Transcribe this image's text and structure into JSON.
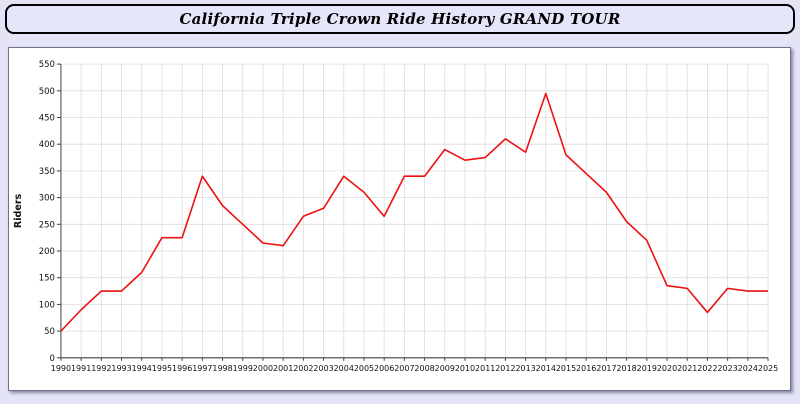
{
  "header": {
    "title": "California Triple Crown Ride History GRAND TOUR"
  },
  "chart_data": {
    "type": "line",
    "title": "California Triple Crown Ride History GRAND TOUR",
    "xlabel": "",
    "ylabel": "Riders",
    "ylim": [
      0,
      550
    ],
    "ytick_step": 50,
    "grid": true,
    "legend_position": "none",
    "line_color": "#ee1111",
    "axis_color": "#444444",
    "gridline_color": "#dcdcdc",
    "plot_background": "#ffffff",
    "x": [
      1990,
      1991,
      1992,
      1993,
      1994,
      1995,
      1996,
      1997,
      1998,
      1999,
      2000,
      2001,
      2002,
      2003,
      2004,
      2005,
      2006,
      2007,
      2008,
      2009,
      2010,
      2011,
      2012,
      2013,
      2014,
      2015,
      2016,
      2017,
      2018,
      2019,
      2020,
      2021,
      2022,
      2023,
      2024,
      2025
    ],
    "values": [
      50,
      90,
      125,
      125,
      160,
      225,
      225,
      340,
      285,
      250,
      215,
      210,
      265,
      280,
      340,
      310,
      265,
      340,
      340,
      390,
      370,
      375,
      410,
      385,
      495,
      380,
      345,
      310,
      255,
      220,
      135,
      130,
      85,
      130,
      125,
      125
    ]
  }
}
